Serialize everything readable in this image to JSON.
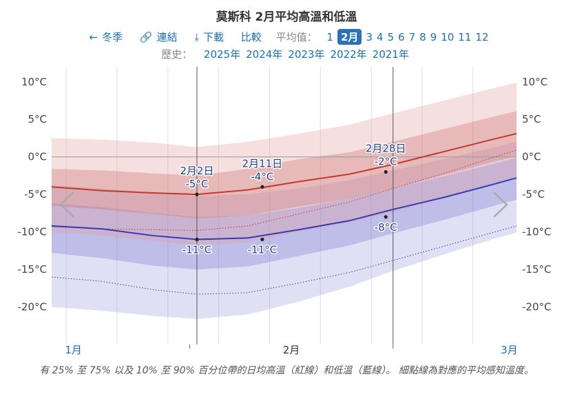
{
  "page": {
    "title": "莫斯科 2月平均高溫和低溫",
    "nav": {
      "back_label": "冬季",
      "link_label": "連結",
      "download_label": "下載",
      "compare_label": "比較",
      "avg_label": "平均值：",
      "months": [
        "1",
        "2月",
        "3",
        "4",
        "5",
        "6",
        "7",
        "8",
        "9",
        "10",
        "11",
        "12"
      ],
      "active_month": "2月"
    },
    "history": {
      "label": "歷史：",
      "years": [
        "2025年",
        "2024年",
        "2023年",
        "2022年",
        "2021年"
      ]
    },
    "footnote": "有 25% 至 75% 以及 10% 至 90% 百分位帶的日均高溫（紅線）和低溫（藍線）。 細點線為對應的平均感知溫度。",
    "icons": {
      "back": "arrow-left-icon",
      "link": "link-icon",
      "download": "download-icon",
      "prev": "chevron-left-icon",
      "next": "chevron-right-icon"
    }
  },
  "chart_data": {
    "type": "area",
    "x_unit": "day-of-year",
    "xlim": [
      13,
      77
    ],
    "ylim": [
      -25,
      12
    ],
    "y_ticks": [
      10,
      5,
      0,
      -5,
      -10,
      -15,
      -20
    ],
    "y_tick_labels": [
      "10°C",
      "5°C",
      "0°C",
      "-5°C",
      "-10°C",
      "-15°C",
      "-20°C"
    ],
    "x_month_labels": [
      {
        "label": "1月",
        "x": 16
      },
      {
        "label": "2月",
        "x": 46
      },
      {
        "label": "3月",
        "x": 76
      }
    ],
    "month_ticks": [
      1,
      32,
      60
    ],
    "vertical_markers": [
      33,
      60
    ],
    "grid": true,
    "x": [
      13,
      20,
      27,
      33,
      40,
      47,
      54,
      60,
      67,
      74,
      77
    ],
    "series": [
      {
        "role": "high",
        "color": "#c0392b",
        "mean": [
          -4.0,
          -4.5,
          -4.8,
          -5.0,
          -4.4,
          -3.3,
          -2.3,
          -1.0,
          0.7,
          2.4,
          3.1
        ],
        "p25": [
          -6.5,
          -7.0,
          -7.6,
          -8.2,
          -7.8,
          -6.6,
          -5.6,
          -4.2,
          -2.4,
          -0.6,
          0.1
        ],
        "p75": [
          -1.6,
          -1.8,
          -2.2,
          -2.5,
          -1.6,
          -0.3,
          0.6,
          2.0,
          3.7,
          5.4,
          6.1
        ],
        "p10": [
          -10.0,
          -10.5,
          -11.2,
          -11.8,
          -11.4,
          -10.0,
          -8.8,
          -7.4,
          -5.5,
          -3.6,
          -2.9
        ],
        "p90": [
          2.5,
          2.3,
          1.9,
          1.3,
          2.0,
          3.1,
          4.3,
          5.8,
          7.5,
          9.2,
          9.9
        ],
        "feels": [
          -9.3,
          -9.6,
          -9.7,
          -9.8,
          -9.2,
          -7.6,
          -6.0,
          -4.2,
          -2.2,
          0.0,
          0.9
        ]
      },
      {
        "role": "low",
        "color": "#3838b0",
        "mean": [
          -9.2,
          -9.6,
          -10.5,
          -11.0,
          -10.8,
          -9.7,
          -8.5,
          -7.0,
          -5.4,
          -3.6,
          -2.8
        ],
        "p25": [
          -12.8,
          -13.5,
          -14.5,
          -15.0,
          -14.6,
          -13.2,
          -11.8,
          -10.2,
          -8.4,
          -6.5,
          -5.7
        ],
        "p75": [
          -6.2,
          -6.7,
          -7.5,
          -8.0,
          -7.8,
          -6.8,
          -5.6,
          -4.2,
          -2.6,
          -0.9,
          -0.1
        ],
        "p10": [
          -20.0,
          -20.5,
          -21.2,
          -21.6,
          -21.0,
          -19.3,
          -17.3,
          -15.2,
          -13.0,
          -10.9,
          -10.1
        ],
        "p90": [
          -3.8,
          -4.2,
          -4.8,
          -5.2,
          -5.0,
          -4.2,
          -3.1,
          -1.8,
          -0.3,
          1.3,
          2.0
        ],
        "feels": [
          -16.0,
          -16.6,
          -17.7,
          -18.3,
          -18.1,
          -16.8,
          -15.4,
          -13.8,
          -11.9,
          -10.0,
          -9.2
        ]
      }
    ],
    "annotations": [
      {
        "date": "2月2日",
        "x": 33,
        "high": -5,
        "low": -11,
        "high_label": "-5°C",
        "low_label": "-11°C"
      },
      {
        "date": "2月11日",
        "x": 42,
        "high": -4,
        "low": -11,
        "high_label": "-4°C",
        "low_label": "-11°C"
      },
      {
        "date": "2月28日",
        "x": 59,
        "high": -2,
        "low": -8,
        "high_label": "-2°C",
        "low_label": "-8°C"
      }
    ]
  }
}
